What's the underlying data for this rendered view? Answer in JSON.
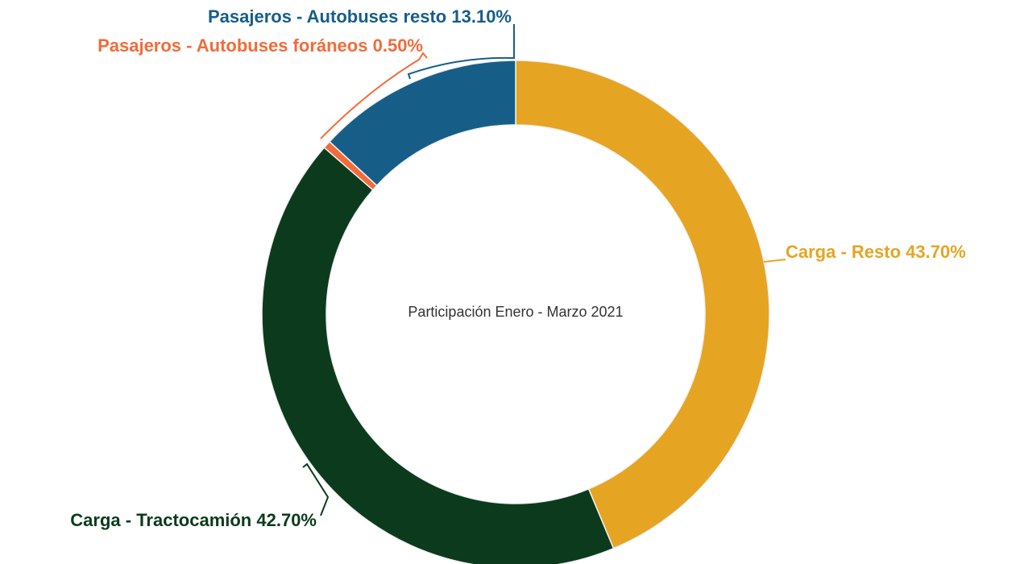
{
  "chart_data": {
    "type": "pie",
    "title": "Participación Enero - Marzo 2021",
    "categories": [
      "Carga - Resto",
      "Carga - Tractocamión",
      "Pasajeros - Autobuses foráneos",
      "Pasajeros - Autobuses resto"
    ],
    "values": [
      43.7,
      42.7,
      0.5,
      13.1
    ],
    "value_labels": [
      "43.70%",
      "42.70%",
      "0.50%",
      "13.10%"
    ],
    "colors": [
      "#e6a423",
      "#0b3b1c",
      "#f26b3a",
      "#165e87"
    ]
  }
}
